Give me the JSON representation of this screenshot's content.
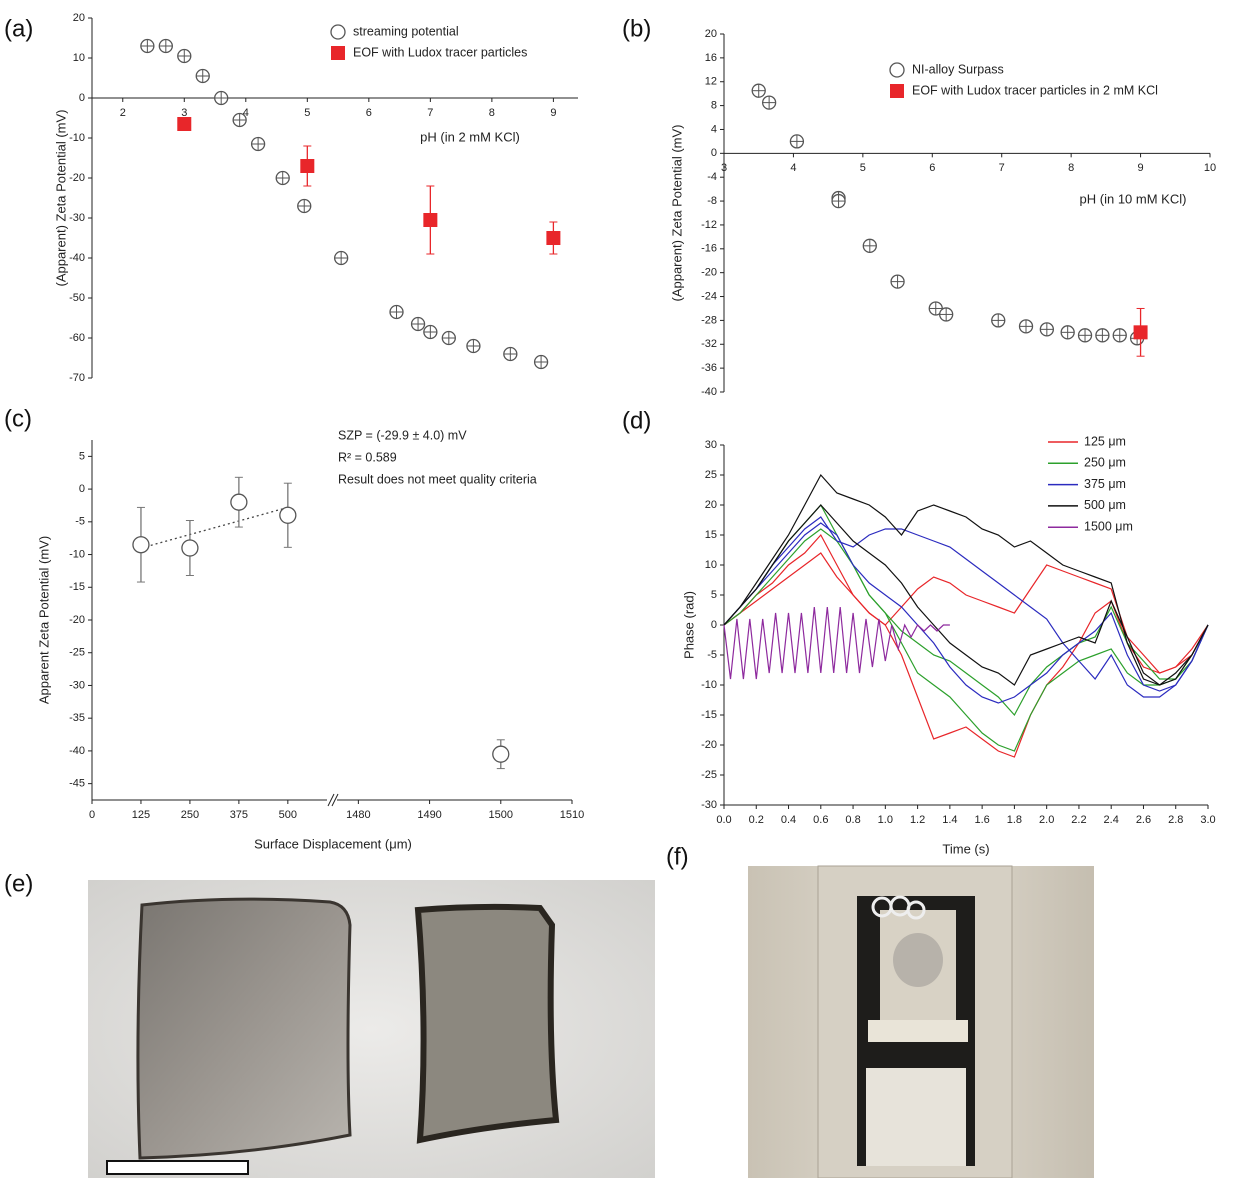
{
  "chart_data": [
    {
      "type": "scatter",
      "panel_label": "(a)",
      "xlabel": "pH (in 2 mM KCl)",
      "ylabel": "(Apparent) Zeta Potential (mV)",
      "xlim": [
        1.5,
        9.4
      ],
      "ylim": [
        -70,
        20
      ],
      "xticks": [
        2,
        3,
        4,
        5,
        6,
        7,
        8,
        9
      ],
      "yticks": [
        20,
        10,
        0,
        -10,
        -20,
        -30,
        -40,
        -50,
        -60,
        -70
      ],
      "x_axis_at": 0,
      "legend": "upper right",
      "series": [
        {
          "name": "streaming potential",
          "color": "#555555",
          "marker": "open-circle",
          "x": [
            2.4,
            2.7,
            3.0,
            3.3,
            3.6,
            3.9,
            4.2,
            4.6,
            4.95,
            5.55,
            6.45,
            6.8,
            7.0,
            7.3,
            7.7,
            8.3,
            8.8
          ],
          "values": [
            13,
            13,
            10.5,
            5.5,
            0,
            -5.5,
            -11.5,
            -20,
            -27,
            -40,
            -53.5,
            -56.5,
            -58.5,
            -60,
            -62,
            -64,
            -66
          ]
        },
        {
          "name": "EOF with Ludox tracer particles",
          "color": "#e8262a",
          "marker": "square",
          "x": [
            3,
            5,
            7,
            9
          ],
          "values": [
            -6.5,
            -17,
            -30.5,
            -35
          ],
          "errors": [
            0,
            5,
            8.5,
            4
          ]
        }
      ]
    },
    {
      "type": "scatter",
      "panel_label": "(b)",
      "xlabel": "pH (in 10 mM KCl)",
      "ylabel": "(Apparent) Zeta Potential (mV)",
      "xlim": [
        3,
        10
      ],
      "ylim": [
        -40,
        20
      ],
      "xticks": [
        3,
        4,
        5,
        6,
        7,
        8,
        9,
        10
      ],
      "yticks": [
        20,
        16,
        12,
        8,
        4,
        0,
        -4,
        -8,
        -12,
        -16,
        -20,
        -24,
        -28,
        -32,
        -36,
        -40
      ],
      "x_axis_at": 0,
      "legend": "upper right",
      "series": [
        {
          "name": "NI-alloy Surpass",
          "color": "#555555",
          "marker": "open-circle",
          "x": [
            3.5,
            3.65,
            4.05,
            4.65,
            4.65,
            5.1,
            5.5,
            6.05,
            6.2,
            6.95,
            7.35,
            7.65,
            7.95,
            8.2,
            8.45,
            8.7,
            8.95
          ],
          "values": [
            10.5,
            8.5,
            2,
            -7.5,
            -8,
            -15.5,
            -21.5,
            -26,
            -27,
            -28,
            -29,
            -29.5,
            -30,
            -30.5,
            -30.5,
            -30.5,
            -31
          ]
        },
        {
          "name": "EOF with Ludox tracer particles in 2 mM KCl",
          "color": "#e8262a",
          "marker": "square",
          "x": [
            9
          ],
          "values": [
            -30
          ],
          "errors": [
            4
          ]
        }
      ]
    },
    {
      "type": "scatter",
      "panel_label": "(c)",
      "xlabel": "Surface Displacement (μm)",
      "ylabel": "Apparent Zeta Potential (mV)",
      "xlim": [
        [
          0,
          600
        ],
        [
          1477,
          1510
        ]
      ],
      "ylim": [
        -47.5,
        7.5
      ],
      "xticks": [
        0,
        125,
        250,
        375,
        500,
        1480,
        1490,
        1500,
        1510
      ],
      "yticks": [
        5,
        0,
        -5,
        -10,
        -15,
        -20,
        -25,
        -30,
        -35,
        -40,
        -45
      ],
      "annotations": [
        "SZP = (-29.9 ± 4.0) mV",
        "R² = 0.589",
        "Result does not meet quality criteria"
      ],
      "series": [
        {
          "color": "#555555",
          "marker": "open-circle",
          "x": [
            125,
            250,
            375,
            500,
            1500
          ],
          "values": [
            -8.5,
            -9,
            -2,
            -4,
            -40.5
          ],
          "errors": [
            5.7,
            4.2,
            3.8,
            4.9,
            2.2
          ]
        }
      ],
      "fit_line": {
        "x": [
          150,
          500
        ],
        "values": [
          -8.6,
          -2.8
        ]
      }
    },
    {
      "type": "line",
      "panel_label": "(d)",
      "xlabel": "Time (s)",
      "ylabel": "Phase (rad)",
      "xlim": [
        0,
        3
      ],
      "ylim": [
        -30,
        30
      ],
      "xticks": [
        {
          "value": 0,
          "label": "0.0"
        },
        {
          "value": 0.2,
          "label": "0.2"
        },
        {
          "value": 0.4,
          "label": "0.4"
        },
        {
          "value": 0.6,
          "label": "0.6"
        },
        {
          "value": 0.8,
          "label": "0.8"
        },
        {
          "value": 1,
          "label": "1.0"
        },
        {
          "value": 1.2,
          "label": "1.2"
        },
        {
          "value": 1.4,
          "label": "1.4"
        },
        {
          "value": 1.6,
          "label": "1.6"
        },
        {
          "value": 1.8,
          "label": "1.8"
        },
        {
          "value": 2,
          "label": "2.0"
        },
        {
          "value": 2.2,
          "label": "2.2"
        },
        {
          "value": 2.4,
          "label": "2.4"
        },
        {
          "value": 2.6,
          "label": "2.6"
        },
        {
          "value": 2.8,
          "label": "2.8"
        },
        {
          "value": 3,
          "label": "3.0"
        }
      ],
      "yticks": [
        30,
        25,
        20,
        15,
        10,
        5,
        0,
        -5,
        -10,
        -15,
        -20,
        -25,
        -30
      ],
      "x": [
        0,
        0.1,
        0.2,
        0.3,
        0.4,
        0.5,
        0.6,
        0.7,
        0.8,
        0.9,
        1,
        1.1,
        1.2,
        1.3,
        1.4,
        1.5,
        1.6,
        1.7,
        1.8,
        1.9,
        2,
        2.1,
        2.2,
        2.3,
        2.4,
        2.5,
        2.6,
        2.7,
        2.8,
        2.9,
        3
      ],
      "series": [
        {
          "name": "125 μm",
          "color": "#e8262a",
          "traces": [
            [
              0,
              2,
              4,
              6,
              8,
              10,
              12,
              8,
              5,
              2,
              0,
              -5,
              -12,
              -19,
              -18,
              -17,
              -19,
              -21,
              -22,
              -15,
              -10,
              -7,
              -3,
              2,
              4,
              -3,
              -7,
              -8,
              -7,
              -4,
              0
            ],
            [
              0,
              2,
              5,
              7,
              10,
              12,
              15,
              10,
              5,
              2,
              0,
              3,
              6,
              8,
              7,
              5,
              4,
              3,
              2,
              6,
              10,
              9,
              8,
              7,
              6,
              -2,
              -5,
              -8,
              -7,
              -5,
              0
            ]
          ]
        },
        {
          "name": "250 μm",
          "color": "#2ca02c",
          "traces": [
            [
              0,
              3,
              6,
              10,
              14,
              17,
              20,
              15,
              10,
              5,
              2,
              -3,
              -8,
              -10,
              -12,
              -15,
              -18,
              -20,
              -21,
              -15,
              -10,
              -8,
              -6,
              -5,
              -4,
              -8,
              -10,
              -10,
              -9,
              -5,
              0
            ],
            [
              0,
              2,
              5,
              8,
              11,
              14,
              16,
              14,
              10,
              5,
              2,
              -1,
              -3,
              -5,
              -6,
              -8,
              -10,
              -12,
              -15,
              -10,
              -7,
              -5,
              -3,
              -2,
              3,
              -3,
              -6,
              -9,
              -9,
              -6,
              0
            ]
          ]
        },
        {
          "name": "375 μm",
          "color": "#2b2bbf",
          "traces": [
            [
              0,
              3,
              6,
              10,
              13,
              16,
              18,
              14,
              13,
              15,
              16,
              16,
              15,
              14,
              13,
              11,
              9,
              7,
              5,
              3,
              1,
              -3,
              -6,
              -9,
              -5,
              -10,
              -12,
              -12,
              -10,
              -6,
              0
            ],
            [
              0,
              3,
              6,
              9,
              12,
              15,
              17,
              15,
              10,
              7,
              5,
              3,
              0,
              -3,
              -7,
              -10,
              -12,
              -13,
              -12,
              -10,
              -8,
              -5,
              -3,
              -1,
              2,
              -5,
              -10,
              -11,
              -10,
              -6,
              0
            ]
          ]
        },
        {
          "name": "500 μm",
          "color": "#111111",
          "traces": [
            [
              0,
              3,
              7,
              11,
              15,
              20,
              25,
              22,
              21,
              20,
              18,
              15,
              19,
              20,
              19,
              18,
              16,
              15,
              13,
              14,
              12,
              10,
              9,
              8,
              7,
              -3,
              -9,
              -10,
              -8,
              -5,
              0
            ],
            [
              0,
              3,
              6,
              10,
              14,
              17,
              20,
              17,
              14,
              12,
              10,
              7,
              3,
              0,
              -3,
              -5,
              -7,
              -8,
              -10,
              -5,
              -4,
              -3,
              -2,
              -3,
              4,
              -2,
              -8,
              -10,
              -9,
              -5,
              0
            ]
          ]
        },
        {
          "name": "1500 μm",
          "color": "#8e2a9e",
          "x": [
            0,
            0.04,
            0.08,
            0.12,
            0.16,
            0.2,
            0.24,
            0.28,
            0.32,
            0.36,
            0.4,
            0.44,
            0.48,
            0.52,
            0.56,
            0.6,
            0.64,
            0.68,
            0.72,
            0.76,
            0.8,
            0.84,
            0.88,
            0.92,
            0.96,
            1,
            1.04,
            1.08,
            1.12,
            1.16,
            1.2,
            1.24,
            1.28,
            1.32,
            1.36,
            1.4
          ],
          "traces": [
            [
              0,
              -9,
              1,
              -9,
              1,
              -9,
              1,
              -8,
              2,
              -8,
              2,
              -8,
              2,
              -8,
              3,
              -8,
              3,
              -8,
              3,
              -8,
              2,
              -8,
              1,
              -7,
              1,
              -6,
              0,
              -4,
              0,
              -2,
              0,
              -1,
              0,
              -1,
              0,
              0
            ]
          ]
        }
      ]
    }
  ],
  "panel_e": {
    "label": "(e)"
  },
  "panel_f": {
    "label": "(f)"
  }
}
